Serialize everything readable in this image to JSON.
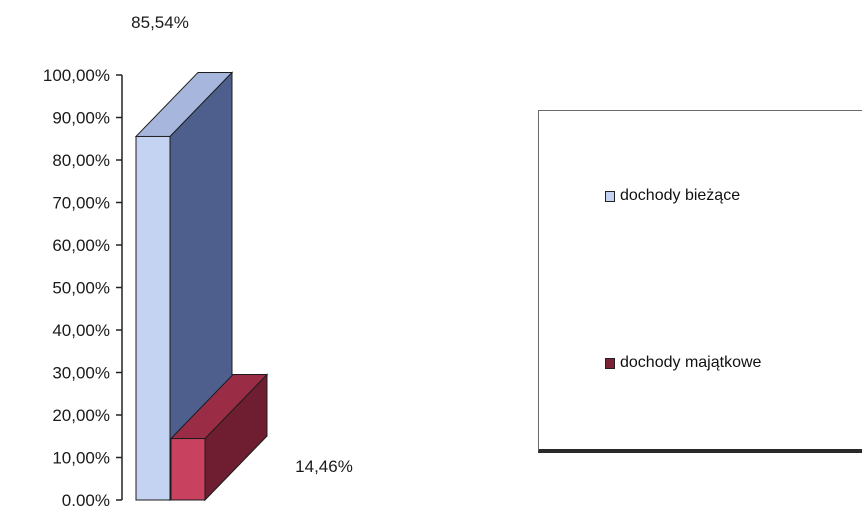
{
  "chart_data": {
    "type": "bar",
    "style": "3d",
    "categories": [
      "dochody bieżące",
      "dochody majątkowe"
    ],
    "values": [
      85.54,
      14.46
    ],
    "data_labels": [
      "85,54%",
      "14,46%"
    ],
    "ylim": [
      0,
      100
    ],
    "y_ticks": [
      "0.00%",
      "10,00%",
      "20,00%",
      "30,00%",
      "40,00%",
      "50,00%",
      "60,00%",
      "70,00%",
      "80,00%",
      "90,00%",
      "100,00%"
    ],
    "grid": false,
    "legend_position": "right",
    "colors": {
      "dochody_biezace": {
        "front": "#c5d3f2",
        "side": "#4e5f8e",
        "top": "#a6b6dc"
      },
      "dochody_majatkowe": {
        "front": "#c8415f",
        "side": "#6e1e30",
        "top": "#9a2d45"
      }
    }
  },
  "legend": {
    "items": [
      {
        "label": "dochody bieżące",
        "color": "#c5d3f2"
      },
      {
        "label": "dochody majątkowe",
        "color": "#7a2236"
      }
    ]
  }
}
